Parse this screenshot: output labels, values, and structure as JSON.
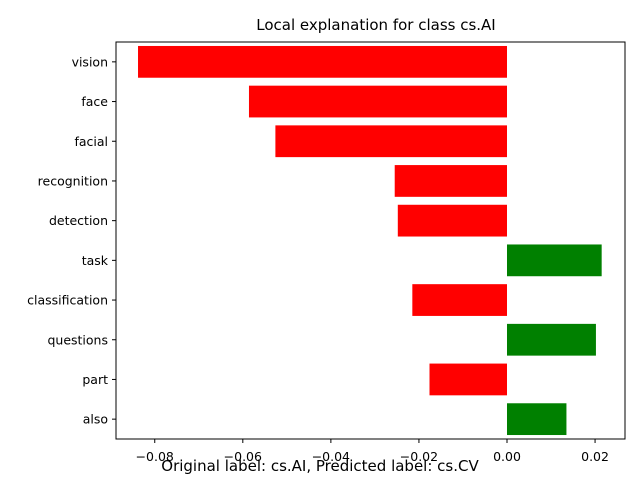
{
  "chart_data": {
    "type": "bar",
    "orientation": "horizontal",
    "title": "Local explanation for class cs.AI",
    "caption": "Original label: cs.AI, Predicted label: cs.CV",
    "categories": [
      "vision",
      "face",
      "facial",
      "recognition",
      "detection",
      "task",
      "classification",
      "questions",
      "part",
      "also"
    ],
    "values": [
      -0.0838,
      -0.0586,
      -0.0526,
      -0.0255,
      -0.0248,
      0.0215,
      -0.0215,
      0.0202,
      -0.0176,
      0.0135
    ],
    "xlim": [
      -0.0888,
      0.0268
    ],
    "xticks": [
      -0.08,
      -0.06,
      -0.04,
      -0.02,
      0.0,
      0.02
    ],
    "xtick_labels": [
      "−0.08",
      "−0.06",
      "−0.04",
      "−0.02",
      "0.00",
      "0.02"
    ],
    "xlabel": "",
    "ylabel": "",
    "grid": false,
    "colors": {
      "positive": "#008000",
      "negative": "#ff0000"
    }
  }
}
